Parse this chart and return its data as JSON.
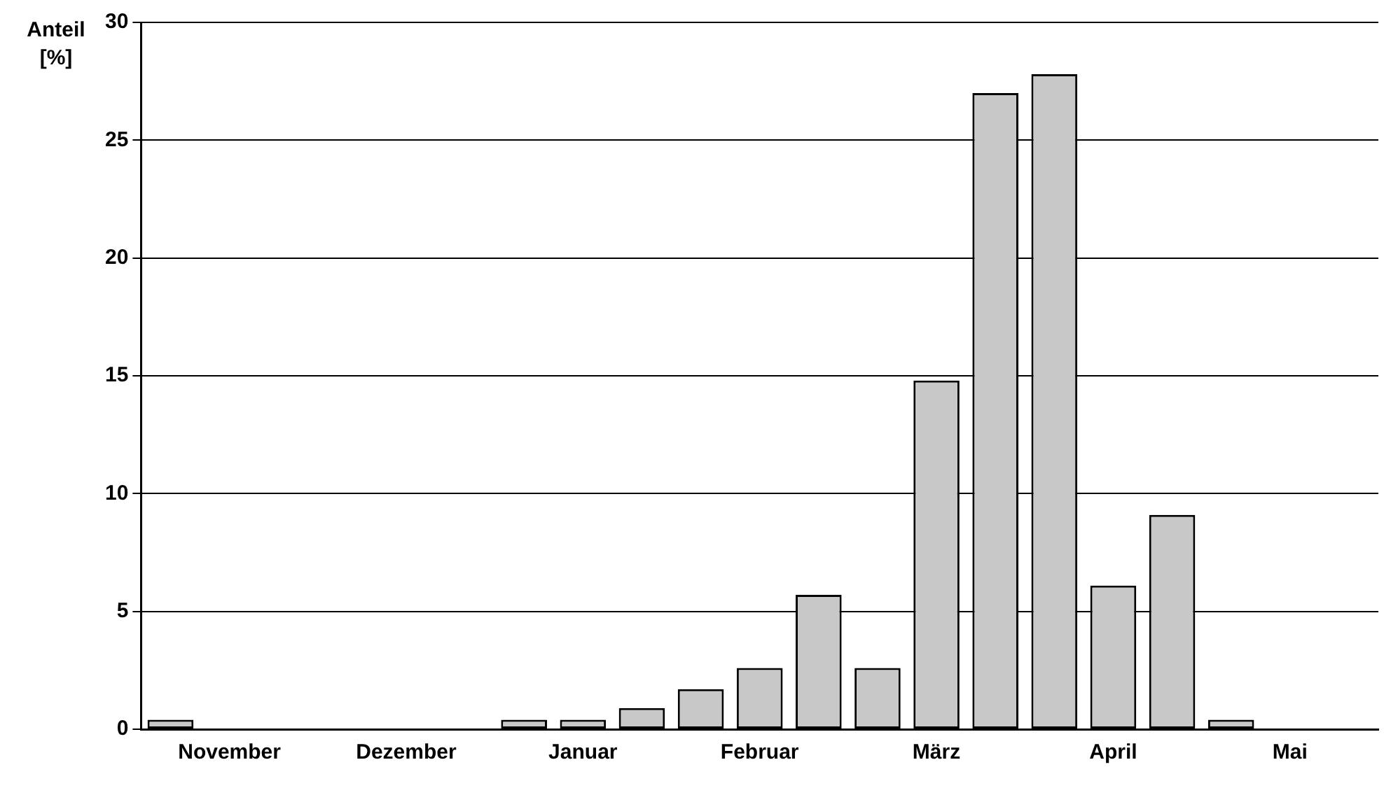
{
  "chart_data": {
    "type": "bar",
    "ylabel": "Anteil [%]",
    "categories": [
      null,
      "November",
      null,
      null,
      "Dezember",
      null,
      null,
      "Januar",
      null,
      null,
      "Februar",
      null,
      null,
      "März",
      null,
      null,
      "April",
      null,
      null,
      "Mai",
      null
    ],
    "values": [
      0.4,
      0,
      0,
      0,
      0,
      0,
      0.4,
      0.4,
      0.9,
      1.7,
      2.6,
      5.7,
      2.6,
      14.8,
      27.0,
      27.8,
      6.1,
      9.1,
      0.4,
      0,
      0
    ],
    "color": "#c8c8c8",
    "ylim": [
      0,
      30
    ],
    "yticks": [
      0,
      5,
      10,
      15,
      20,
      25,
      30
    ],
    "grid": "y"
  }
}
